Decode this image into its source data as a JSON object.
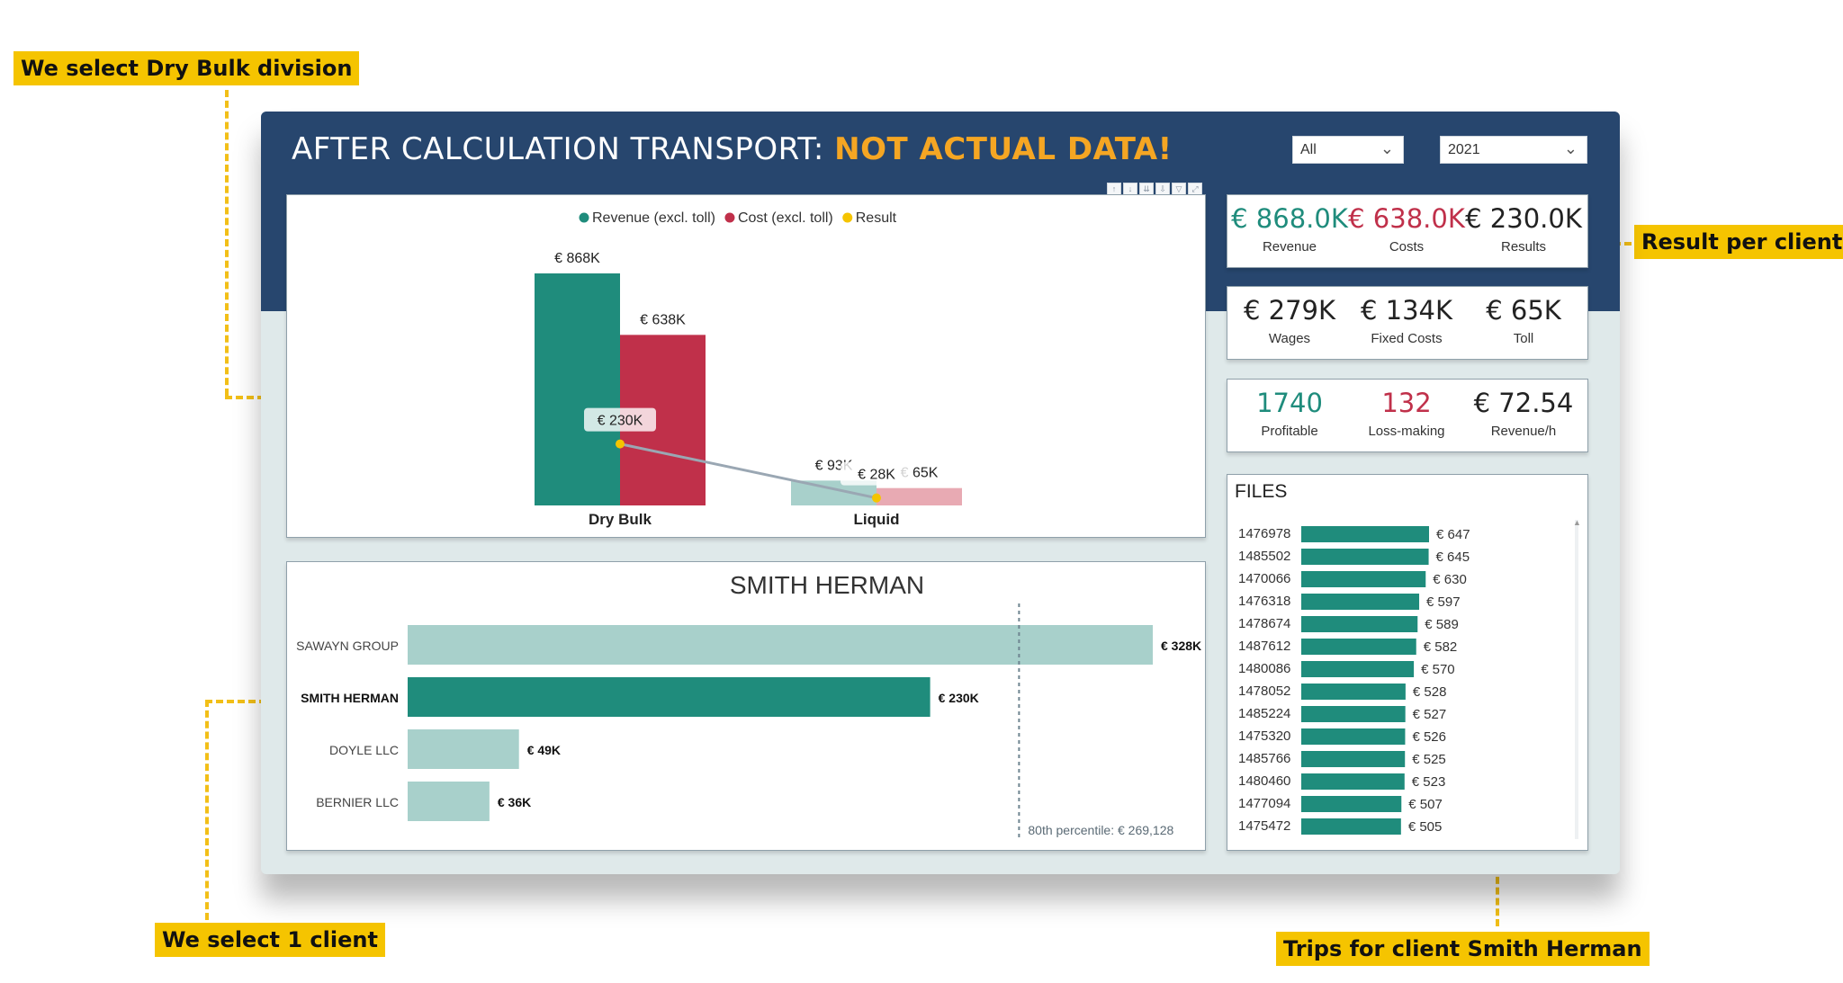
{
  "callouts": {
    "dry_bulk": "We select Dry Bulk division",
    "result_client": "Result per client",
    "one_client": "We select 1 client",
    "trips": "Trips for client Smith Herman"
  },
  "header": {
    "title_prefix": "AFTER CALCULATION TRANSPORT: ",
    "title_warning": "NOT ACTUAL DATA!",
    "slicer_1": "All",
    "slicer_2": "2021"
  },
  "kpis": {
    "row1": [
      {
        "value": "€ 868.0K",
        "label": "Revenue",
        "color": "#1f8c7c"
      },
      {
        "value": "€ 638.0K",
        "label": "Costs",
        "color": "#c0304a"
      },
      {
        "value": "€ 230.0K",
        "label": "Results",
        "color": "#222222"
      }
    ],
    "row2": [
      {
        "value": "€ 279K",
        "label": "Wages",
        "color": "#222222"
      },
      {
        "value": "€ 134K",
        "label": "Fixed Costs",
        "color": "#222222"
      },
      {
        "value": "€ 65K",
        "label": "Toll",
        "color": "#222222"
      }
    ],
    "row3": [
      {
        "value": "1740",
        "label": "Profitable",
        "color": "#1f8c7c"
      },
      {
        "value": "132",
        "label": "Loss-making",
        "color": "#c0304a"
      },
      {
        "value": "€ 72.54",
        "label": "Revenue/h",
        "color": "#222222"
      }
    ]
  },
  "chart_data": [
    {
      "type": "bar",
      "legend": [
        "Revenue (excl. toll)",
        "Cost (excl. toll)",
        "Result"
      ],
      "legend_colors": [
        "#1f8c7c",
        "#c0304a",
        "#f5c400"
      ],
      "legend_placement": "top-center",
      "categories": [
        "Dry Bulk",
        "Liquid"
      ],
      "series": [
        {
          "name": "Revenue (excl. toll)",
          "values": [
            868,
            93
          ],
          "labels": [
            "€ 868K",
            "€ 93K"
          ]
        },
        {
          "name": "Cost (excl. toll)",
          "values": [
            638,
            65
          ],
          "labels": [
            "€ 638K",
            "€ 65K"
          ]
        },
        {
          "name": "Result",
          "values": [
            230,
            28
          ],
          "labels": [
            "€ 230K",
            "€ 28K"
          ]
        }
      ],
      "selected_category": "Dry Bulk",
      "ylim": [
        0,
        868
      ]
    },
    {
      "type": "bar",
      "orientation": "horizontal",
      "title": "SMITH HERMAN",
      "categories": [
        "SAWAYN GROUP",
        "SMITH HERMAN",
        "DOYLE LLC",
        "BERNIER LLC"
      ],
      "values": [
        328,
        230,
        49,
        36
      ],
      "labels": [
        "€ 328K",
        "€ 230K",
        "€ 49K",
        "€ 36K"
      ],
      "selected": "SMITH HERMAN",
      "reference_line": {
        "value": 269.128,
        "label": "80th percentile: € 269,128"
      },
      "xlim": [
        0,
        328
      ]
    },
    {
      "type": "bar",
      "orientation": "horizontal",
      "title": "FILES",
      "categories": [
        "1476978",
        "1485502",
        "1470066",
        "1476318",
        "1478674",
        "1487612",
        "1480086",
        "1478052",
        "1485224",
        "1475320",
        "1485766",
        "1480460",
        "1477094",
        "1475472"
      ],
      "values": [
        647,
        645,
        630,
        597,
        589,
        582,
        570,
        528,
        527,
        526,
        525,
        523,
        507,
        505
      ],
      "labels": [
        "€ 647",
        "€ 645",
        "€ 630",
        "€ 597",
        "€ 589",
        "€ 582",
        "€ 570",
        "€ 528",
        "€ 527",
        "€ 526",
        "€ 525",
        "€ 523",
        "€ 507",
        "€ 505"
      ],
      "xlim": [
        0,
        647
      ]
    }
  ]
}
